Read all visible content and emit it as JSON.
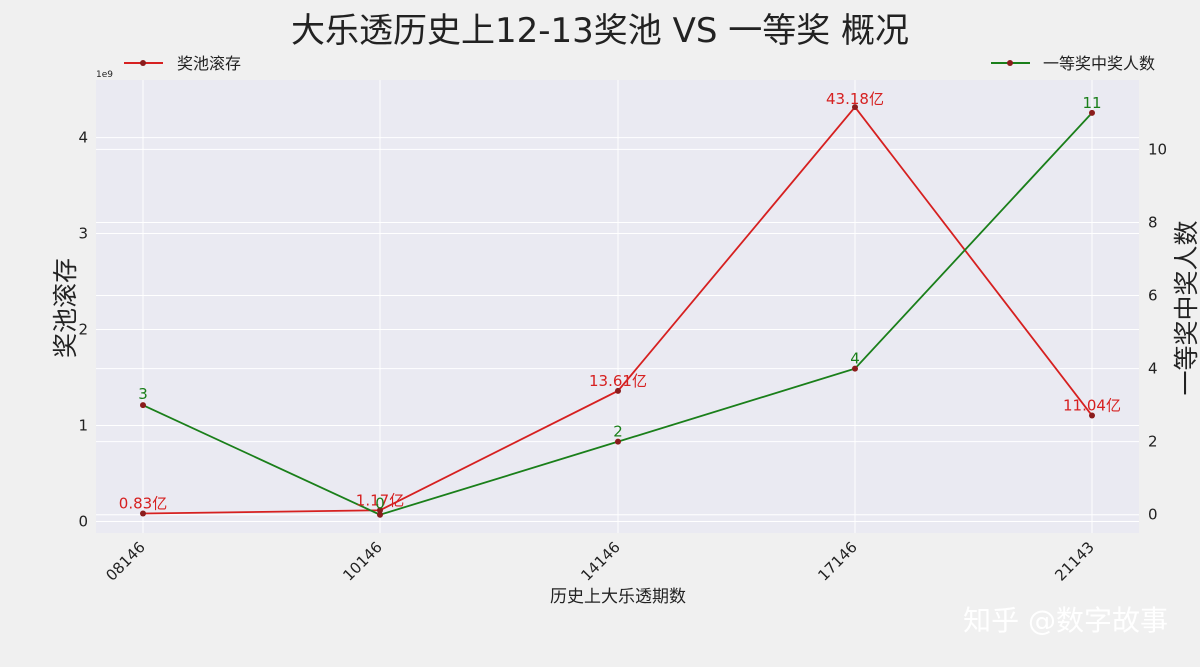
{
  "chart_data": {
    "type": "line",
    "title": "大乐透历史上12-13奖池 VS 一等奖 概况",
    "xlabel": "历史上大乐透期数",
    "categories": [
      "08146",
      "10146",
      "14146",
      "17146",
      "21143"
    ],
    "y_left": {
      "label": "奖池滚存",
      "exponent_label": "1e9",
      "ticks": [
        0,
        1,
        2,
        3,
        4
      ],
      "tick_labels": [
        "0",
        "1",
        "2",
        "3",
        "4"
      ],
      "ylim": [
        -0.12,
        4.6
      ]
    },
    "y_right": {
      "label": "一等奖中奖人数",
      "ticks": [
        0,
        2,
        4,
        6,
        8,
        10
      ],
      "tick_labels": [
        "0",
        "2",
        "4",
        "6",
        "8",
        "10"
      ],
      "ylim": [
        -0.5,
        11.9
      ]
    },
    "series": [
      {
        "name": "奖池滚存",
        "axis": "left",
        "color": "#d62020",
        "values": [
          0.083,
          0.117,
          1.361,
          4.318,
          1.104
        ],
        "labels": [
          "0.83亿",
          "1.17亿",
          "13.61亿",
          "43.18亿",
          "11.04亿"
        ]
      },
      {
        "name": "一等奖中奖人数",
        "axis": "right",
        "color": "#1a7f1a",
        "values": [
          3,
          0,
          2,
          4,
          11
        ],
        "labels": [
          "3",
          "0",
          "2",
          "4",
          "11"
        ]
      }
    ],
    "legend": [
      "top-left",
      "top-right"
    ],
    "grid": true
  },
  "watermark": "知乎 @数字故事"
}
